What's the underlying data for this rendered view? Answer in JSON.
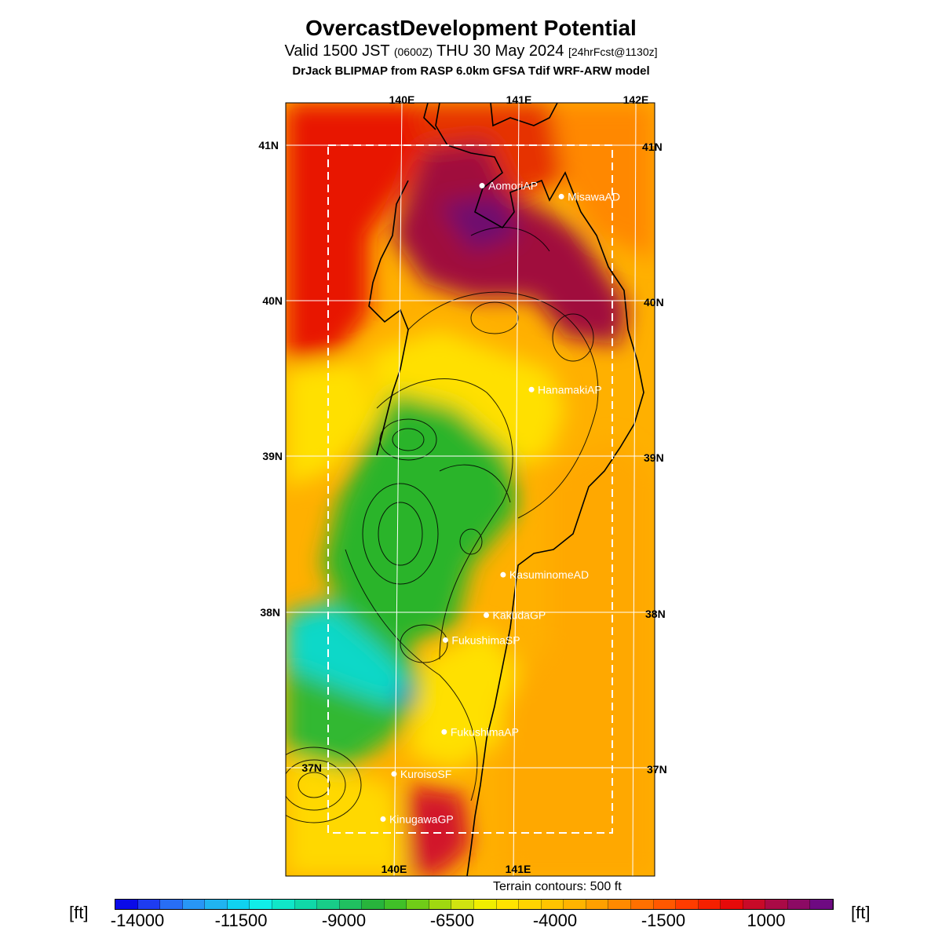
{
  "header": {
    "title": "OvercastDevelopment Potential",
    "valid_prefix": "Valid 1500 JST",
    "valid_zulu": "(0600Z)",
    "valid_date": "THU 30 May 2024",
    "forecast_tag": "[24hrFcst@1130z]",
    "model_line": "DrJack BLIPMAP from RASP 6.0km GFSA Tdif WRF-ARW model"
  },
  "map": {
    "lon_labels_top": [
      "140E",
      "141E",
      "142E"
    ],
    "lon_labels_bottom": [
      "140E",
      "141E"
    ],
    "lat_labels_left": [
      "41N",
      "40N",
      "39N",
      "38N",
      "37N"
    ],
    "lat_labels_right": [
      "41N",
      "40N",
      "39N",
      "38N",
      "37N"
    ],
    "sites": [
      {
        "name": "AomoriAP",
        "lon": 140.69,
        "lat": 40.74
      },
      {
        "name": "MisawaAD",
        "lon": 141.37,
        "lat": 40.67
      },
      {
        "name": "HanamakiAP",
        "lon": 141.14,
        "lat": 39.43
      },
      {
        "name": "KasuminomeAD",
        "lon": 140.92,
        "lat": 38.24
      },
      {
        "name": "KakudaGP",
        "lon": 140.78,
        "lat": 37.98
      },
      {
        "name": "FukushimaSP",
        "lon": 140.43,
        "lat": 37.82
      },
      {
        "name": "FukushimaAP",
        "lon": 140.43,
        "lat": 37.23
      },
      {
        "name": "KuroisoSF",
        "lon": 140.0,
        "lat": 36.96
      },
      {
        "name": "KinugawaGP",
        "lon": 139.91,
        "lat": 36.67
      }
    ],
    "colors": {
      "sea_red": "#e81200",
      "purple": "#8b0a58",
      "green": "#2cb42c",
      "cyan": "#10d8c8",
      "yellow": "#ffe000",
      "orange": "#ffb000"
    }
  },
  "terrain_note": "Terrain contours: 500 ft",
  "colorbar": {
    "unit_left": "[ft]",
    "unit_right": "[ft]",
    "labels": [
      "-14000",
      "-11500",
      "-9000",
      "-6500",
      "-4000",
      "-1500",
      "1000"
    ],
    "colors": [
      "#0a0ae8",
      "#1e3cf0",
      "#286ef5",
      "#2896f5",
      "#20b4f0",
      "#10d2f0",
      "#10eee8",
      "#10e6c8",
      "#10d8a8",
      "#18cc88",
      "#20c060",
      "#28b43c",
      "#40c028",
      "#70cc18",
      "#a0d810",
      "#d0e410",
      "#f0ee00",
      "#ffe400",
      "#ffd400",
      "#ffc400",
      "#ffb400",
      "#ffa000",
      "#ff8a00",
      "#ff7000",
      "#ff5800",
      "#ff3c00",
      "#f52000",
      "#e60a0a",
      "#c80a28",
      "#aa0a46",
      "#8c0a64",
      "#6e0a82"
    ]
  }
}
